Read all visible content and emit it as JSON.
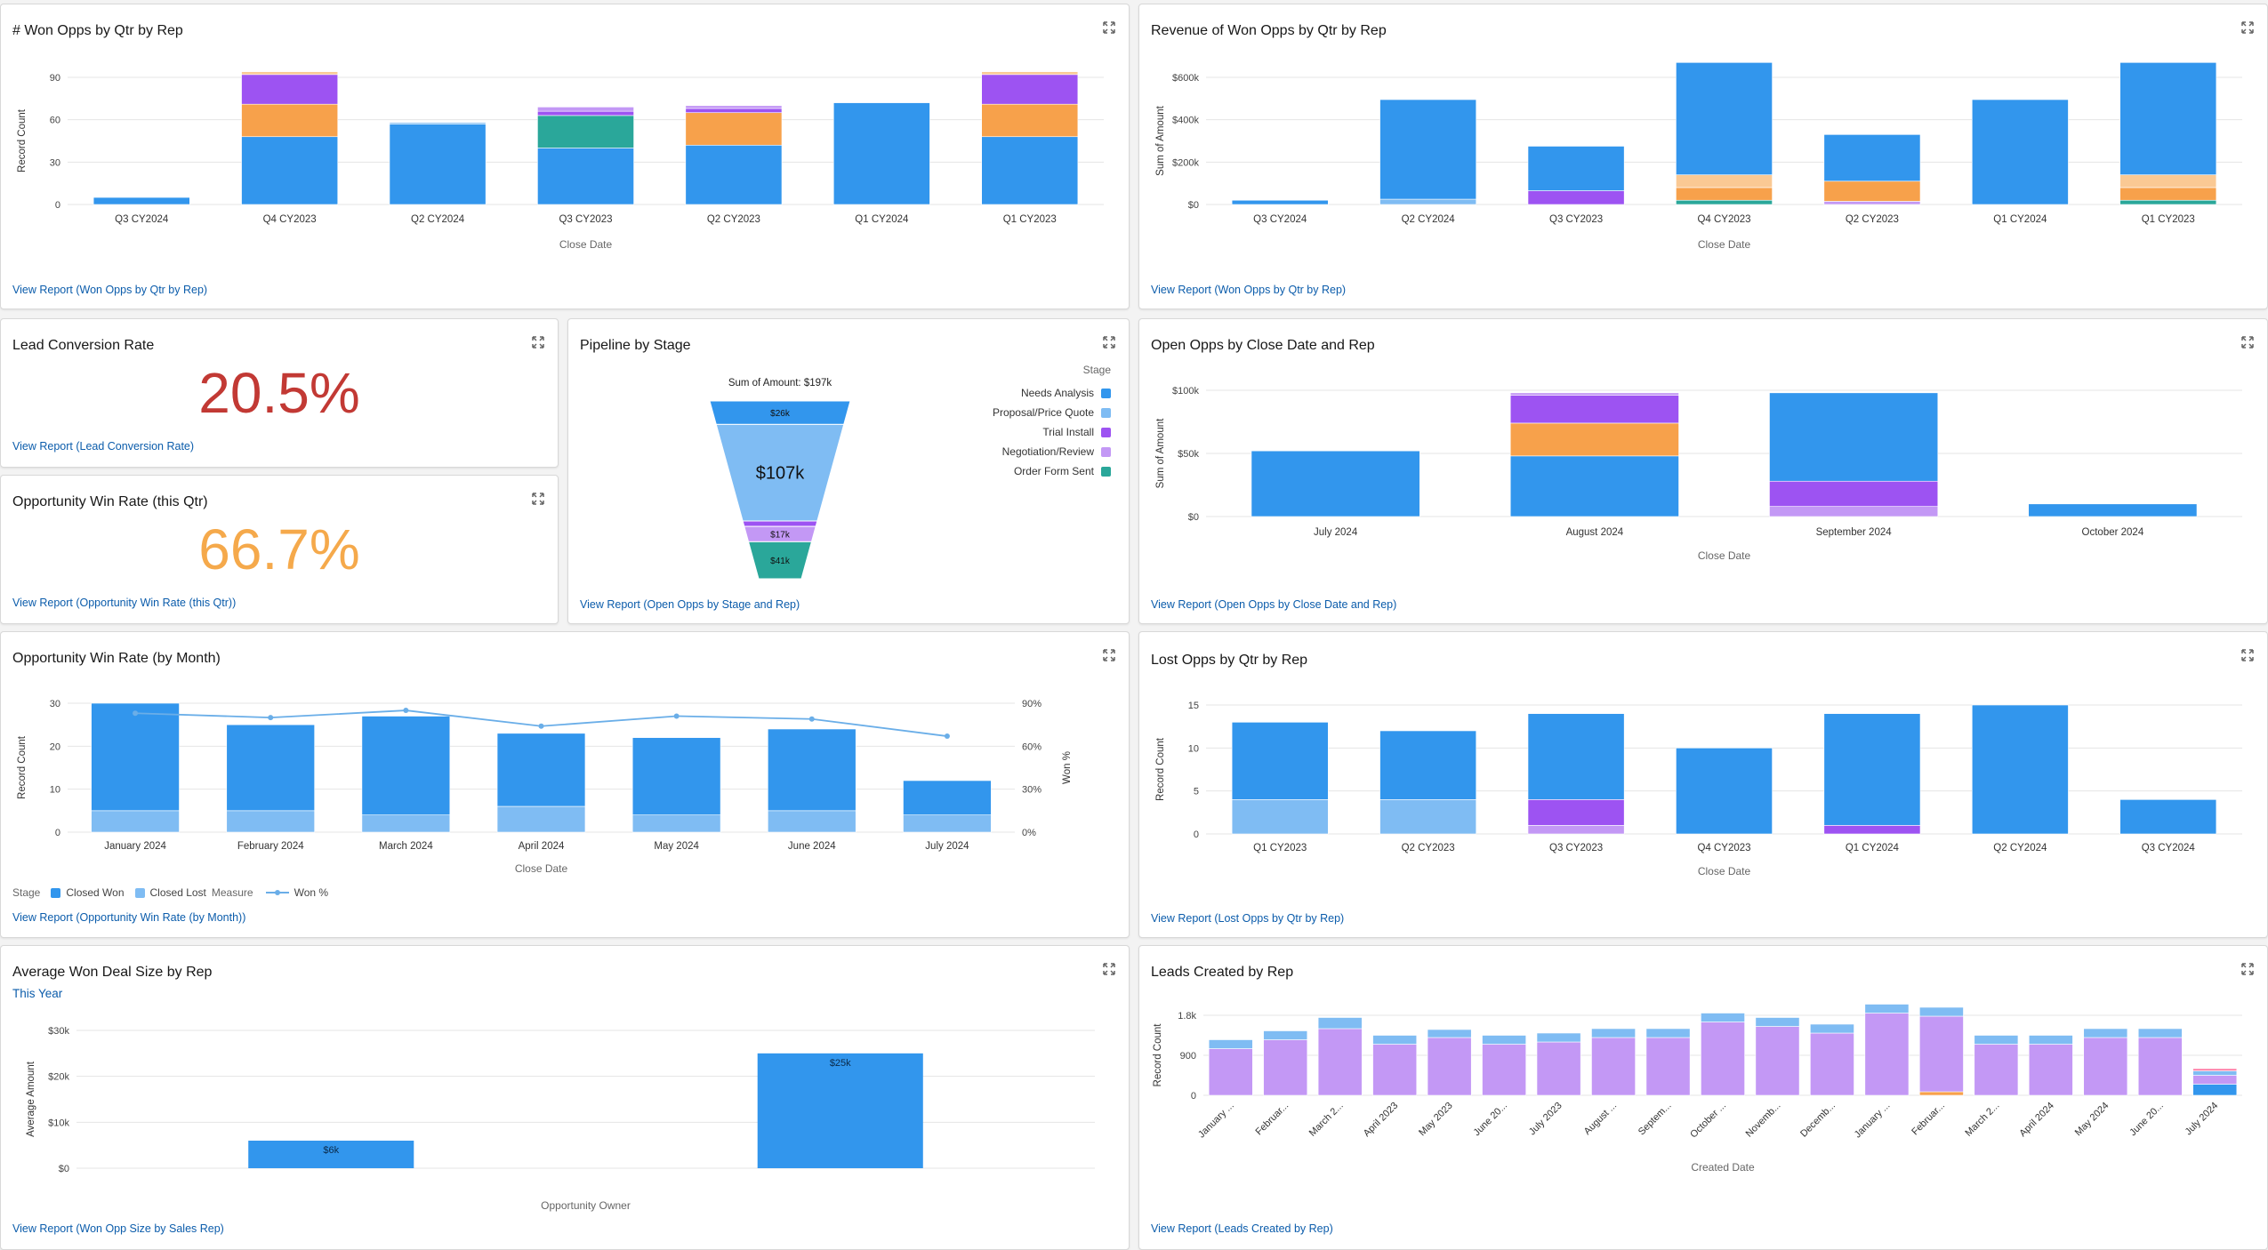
{
  "colors": {
    "blue": "#3296ed",
    "light_blue": "#7fbcf3",
    "purple": "#9d53f2",
    "lavender": "#c398f5",
    "orange": "#f7a14b",
    "peach": "#fac994",
    "teal": "#2aa79a",
    "pink": "#ff7aa4",
    "red_kpi": "#c23934",
    "orange_kpi": "#f5a94b",
    "link": "#0b5cab"
  },
  "cards": {
    "won_opps_count": {
      "title": "# Won Opps by Qtr by Rep",
      "view_report": "View Report (Won Opps by Qtr by Rep)",
      "expand_icon": "expand-icon"
    },
    "won_opps_revenue": {
      "title": "Revenue of Won Opps by Qtr by Rep",
      "view_report": "View Report (Won Opps by Qtr by Rep)",
      "expand_icon": "expand-icon"
    },
    "lead_conversion": {
      "title": "Lead Conversion Rate",
      "value": "20.5%",
      "view_report": "View Report (Lead Conversion Rate)",
      "expand_icon": "expand-icon"
    },
    "win_rate_qtr": {
      "title": "Opportunity Win Rate (this Qtr)",
      "value": "66.7%",
      "view_report": "View Report (Opportunity Win Rate (this Qtr))",
      "expand_icon": "expand-icon"
    },
    "pipeline_stage": {
      "title": "Pipeline by Stage",
      "view_report": "View Report (Open Opps by Stage and Rep)",
      "expand_icon": "expand-icon",
      "legend_title": "Stage"
    },
    "open_opps": {
      "title": "Open Opps by Close Date and Rep",
      "view_report": "View Report (Open Opps by Close Date and Rep)",
      "expand_icon": "expand-icon"
    },
    "win_rate_month": {
      "title": "Opportunity Win Rate (by Month)",
      "view_report": "View Report (Opportunity Win Rate (by Month))",
      "expand_icon": "expand-icon",
      "legend": {
        "stage_label": "Stage",
        "closed_won": "Closed Won",
        "closed_lost": "Closed Lost",
        "measure_label": "Measure",
        "won_pct": "Won %"
      }
    },
    "lost_opps": {
      "title": "Lost Opps by Qtr by Rep",
      "view_report": "View Report (Lost Opps by Qtr by Rep)",
      "expand_icon": "expand-icon"
    },
    "avg_deal": {
      "title": "Average Won Deal Size by Rep",
      "filter_link": "This Year",
      "view_report": "View Report (Won Opp Size by Sales Rep)",
      "expand_icon": "expand-icon"
    },
    "leads_created": {
      "title": "Leads Created by Rep",
      "view_report": "View Report (Leads Created by Rep)",
      "expand_icon": "expand-icon"
    }
  },
  "chart_data": [
    {
      "id": "won_opps_count",
      "type": "bar",
      "stacked": true,
      "categories": [
        "Q3 CY2024",
        "Q4 CY2023",
        "Q2 CY2024",
        "Q3 CY2023",
        "Q2 CY2023",
        "Q1 CY2024",
        "Q1 CY2023"
      ],
      "series": [
        {
          "color": "#3296ed",
          "values": [
            5,
            48,
            57,
            40,
            42,
            72,
            48
          ]
        },
        {
          "color": "#7fbcf3",
          "values": [
            0,
            0,
            1,
            0,
            0,
            0,
            0
          ]
        },
        {
          "color": "#2aa79a",
          "values": [
            0,
            0,
            0,
            23,
            0,
            0,
            0
          ]
        },
        {
          "color": "#f7a14b",
          "values": [
            0,
            23,
            0,
            0,
            23,
            0,
            23
          ]
        },
        {
          "color": "#9d53f2",
          "values": [
            0,
            21,
            0,
            3,
            3,
            0,
            21
          ]
        },
        {
          "color": "#c398f5",
          "values": [
            0,
            0,
            0,
            3,
            2,
            0,
            0
          ]
        },
        {
          "color": "#fac994",
          "values": [
            0,
            2,
            0,
            0,
            0,
            0,
            2
          ]
        }
      ],
      "ylim": [
        0,
        90
      ],
      "yticks": [
        0,
        30,
        60,
        90
      ],
      "ytick_labels": [
        "0",
        "30",
        "60",
        "90"
      ],
      "xlabel": "Close Date",
      "ylabel": "Record Count",
      "grid": true
    },
    {
      "id": "won_opps_revenue",
      "type": "bar",
      "stacked": true,
      "categories": [
        "Q3 CY2024",
        "Q2 CY2024",
        "Q3 CY2023",
        "Q4 CY2023",
        "Q2 CY2023",
        "Q1 CY2024",
        "Q1 CY2023"
      ],
      "series": [
        {
          "color": "#2aa79a",
          "values": [
            0,
            0,
            0,
            20,
            0,
            0,
            20
          ]
        },
        {
          "color": "#7fbcf3",
          "values": [
            0,
            25,
            0,
            0,
            0,
            0,
            0
          ]
        },
        {
          "color": "#9d53f2",
          "values": [
            0,
            0,
            65,
            0,
            0,
            0,
            0
          ]
        },
        {
          "color": "#c398f5",
          "values": [
            0,
            0,
            0,
            0,
            15,
            0,
            0
          ]
        },
        {
          "color": "#f7a14b",
          "values": [
            0,
            0,
            0,
            60,
            95,
            0,
            60
          ]
        },
        {
          "color": "#fac994",
          "values": [
            0,
            0,
            0,
            60,
            0,
            0,
            60
          ]
        },
        {
          "color": "#3296ed",
          "values": [
            20,
            470,
            210,
            530,
            220,
            495,
            530
          ]
        }
      ],
      "ylim": [
        0,
        600
      ],
      "yticks": [
        0,
        200,
        400,
        600
      ],
      "ytick_labels": [
        "$0",
        "$200k",
        "$400k",
        "$600k"
      ],
      "xlabel": "Close Date",
      "ylabel": "Sum of Amount",
      "grid": true
    },
    {
      "id": "pipeline_stage",
      "type": "funnel",
      "total_label": "Sum of Amount: $197k",
      "stages": [
        {
          "name": "Needs Analysis",
          "color": "#3296ed",
          "value": 26,
          "label": "$26k"
        },
        {
          "name": "Proposal/Price Quote",
          "color": "#7fbcf3",
          "value": 107,
          "label": "$107k"
        },
        {
          "name": "Trial Install",
          "color": "#9d53f2",
          "value": 6,
          "label": ""
        },
        {
          "name": "Negotiation/Review",
          "color": "#c398f5",
          "value": 17,
          "label": "$17k"
        },
        {
          "name": "Order Form Sent",
          "color": "#2aa79a",
          "value": 41,
          "label": "$41k"
        }
      ]
    },
    {
      "id": "open_opps",
      "type": "bar",
      "stacked": true,
      "categories": [
        "July 2024",
        "August 2024",
        "September 2024",
        "October 2024"
      ],
      "series": [
        {
          "color": "#3296ed",
          "values": [
            52,
            48,
            0,
            10
          ]
        },
        {
          "color": "#c398f5",
          "values": [
            0,
            0,
            8,
            0
          ]
        },
        {
          "color": "#9d53f2",
          "values": [
            0,
            0,
            20,
            0
          ]
        },
        {
          "color": "#3296ed",
          "values": [
            0,
            0,
            70,
            0
          ]
        },
        {
          "color": "#f7a14b",
          "values": [
            0,
            26,
            0,
            0
          ]
        },
        {
          "color": "#9d53f2",
          "values": [
            0,
            22,
            0,
            0
          ]
        },
        {
          "color": "#c398f5",
          "values": [
            0,
            2,
            0,
            0
          ]
        }
      ],
      "ylim": [
        0,
        100
      ],
      "yticks": [
        0,
        50,
        100
      ],
      "ytick_labels": [
        "$0",
        "$50k",
        "$100k"
      ],
      "xlabel": "Close Date",
      "ylabel": "Sum of Amount",
      "grid": true
    },
    {
      "id": "win_rate_month",
      "type": "bar",
      "stacked": true,
      "categories": [
        "January 2024",
        "February 2024",
        "March 2024",
        "April 2024",
        "May 2024",
        "June 2024",
        "July 2024"
      ],
      "series": [
        {
          "name": "Closed Lost",
          "color": "#7fbcf3",
          "values": [
            5,
            5,
            4,
            6,
            4,
            5,
            4
          ]
        },
        {
          "name": "Closed Won",
          "color": "#3296ed",
          "values": [
            25,
            20,
            23,
            17,
            18,
            19,
            8
          ]
        }
      ],
      "line": {
        "name": "Won %",
        "color": "#6aaee8",
        "values": [
          83,
          80,
          85,
          74,
          81,
          79,
          67
        ]
      },
      "ylim": [
        0,
        30
      ],
      "yticks": [
        0,
        10,
        20,
        30
      ],
      "ytick_labels": [
        "0",
        "10",
        "20",
        "30"
      ],
      "y2lim": [
        0,
        90
      ],
      "y2ticks": [
        0,
        30,
        60,
        90
      ],
      "y2tick_labels": [
        "0%",
        "30%",
        "60%",
        "90%"
      ],
      "xlabel": "Close Date",
      "ylabel": "Record Count",
      "y2label": "Won %",
      "grid": true
    },
    {
      "id": "lost_opps",
      "type": "bar",
      "stacked": true,
      "categories": [
        "Q1 CY2023",
        "Q2 CY2023",
        "Q3 CY2023",
        "Q4 CY2023",
        "Q1 CY2024",
        "Q2 CY2024",
        "Q3 CY2024"
      ],
      "series": [
        {
          "color": "#7fbcf3",
          "values": [
            4,
            4,
            0,
            0,
            0,
            0,
            0
          ]
        },
        {
          "color": "#c398f5",
          "values": [
            0,
            0,
            1,
            0,
            0,
            0,
            0
          ]
        },
        {
          "color": "#9d53f2",
          "values": [
            0,
            0,
            3,
            0,
            1,
            0,
            0
          ]
        },
        {
          "color": "#3296ed",
          "values": [
            9,
            8,
            10,
            10,
            13,
            15,
            4
          ]
        }
      ],
      "ylim": [
        0,
        15
      ],
      "yticks": [
        0,
        5,
        10,
        15
      ],
      "ytick_labels": [
        "0",
        "5",
        "10",
        "15"
      ],
      "xlabel": "Close Date",
      "ylabel": "Record Count",
      "grid": true
    },
    {
      "id": "avg_deal",
      "type": "bar",
      "categories": [
        "",
        ""
      ],
      "values": [
        6,
        25
      ],
      "data_labels": [
        "$6k",
        "$25k"
      ],
      "color": "#3296ed",
      "ylim": [
        0,
        30
      ],
      "yticks": [
        0,
        10,
        20,
        30
      ],
      "ytick_labels": [
        "$0",
        "$10k",
        "$20k",
        "$30k"
      ],
      "xlabel": "Opportunity Owner",
      "ylabel": "Average Amount",
      "grid": true
    },
    {
      "id": "leads_created",
      "type": "bar",
      "stacked": true,
      "categories": [
        "January ...",
        "Februar...",
        "March 2...",
        "April 2023",
        "May 2023",
        "June 20...",
        "July 2023",
        "August ...",
        "Septem...",
        "October ...",
        "Novemb...",
        "Decemb...",
        "January ...",
        "Februar...",
        "March 2...",
        "April 2024",
        "May 2024",
        "June 20...",
        "July 2024"
      ],
      "series": [
        {
          "color": "#3296ed",
          "values": [
            0,
            0,
            0,
            0,
            0,
            0,
            0,
            0,
            0,
            0,
            0,
            0,
            0,
            0,
            0,
            0,
            0,
            0,
            250
          ]
        },
        {
          "color": "#f7a14b",
          "values": [
            0,
            0,
            0,
            0,
            0,
            0,
            0,
            0,
            0,
            0,
            0,
            0,
            0,
            80,
            0,
            0,
            0,
            0,
            0
          ]
        },
        {
          "color": "#c398f5",
          "values": [
            1050,
            1250,
            1500,
            1150,
            1300,
            1150,
            1200,
            1300,
            1300,
            1650,
            1550,
            1400,
            1850,
            1700,
            1150,
            1150,
            1300,
            1300,
            200
          ]
        },
        {
          "color": "#7fbcf3",
          "values": [
            200,
            200,
            250,
            200,
            180,
            200,
            200,
            200,
            200,
            200,
            200,
            200,
            200,
            200,
            200,
            200,
            200,
            200,
            100
          ]
        },
        {
          "color": "#ff7aa4",
          "values": [
            0,
            0,
            0,
            0,
            0,
            0,
            0,
            0,
            0,
            0,
            0,
            0,
            0,
            0,
            0,
            0,
            0,
            0,
            50
          ]
        }
      ],
      "ylim": [
        0,
        1800
      ],
      "yticks": [
        0,
        900,
        1800
      ],
      "ytick_labels": [
        "0",
        "900",
        "1.8k"
      ],
      "xlabel": "Created Date",
      "ylabel": "Record Count",
      "grid": true
    }
  ]
}
